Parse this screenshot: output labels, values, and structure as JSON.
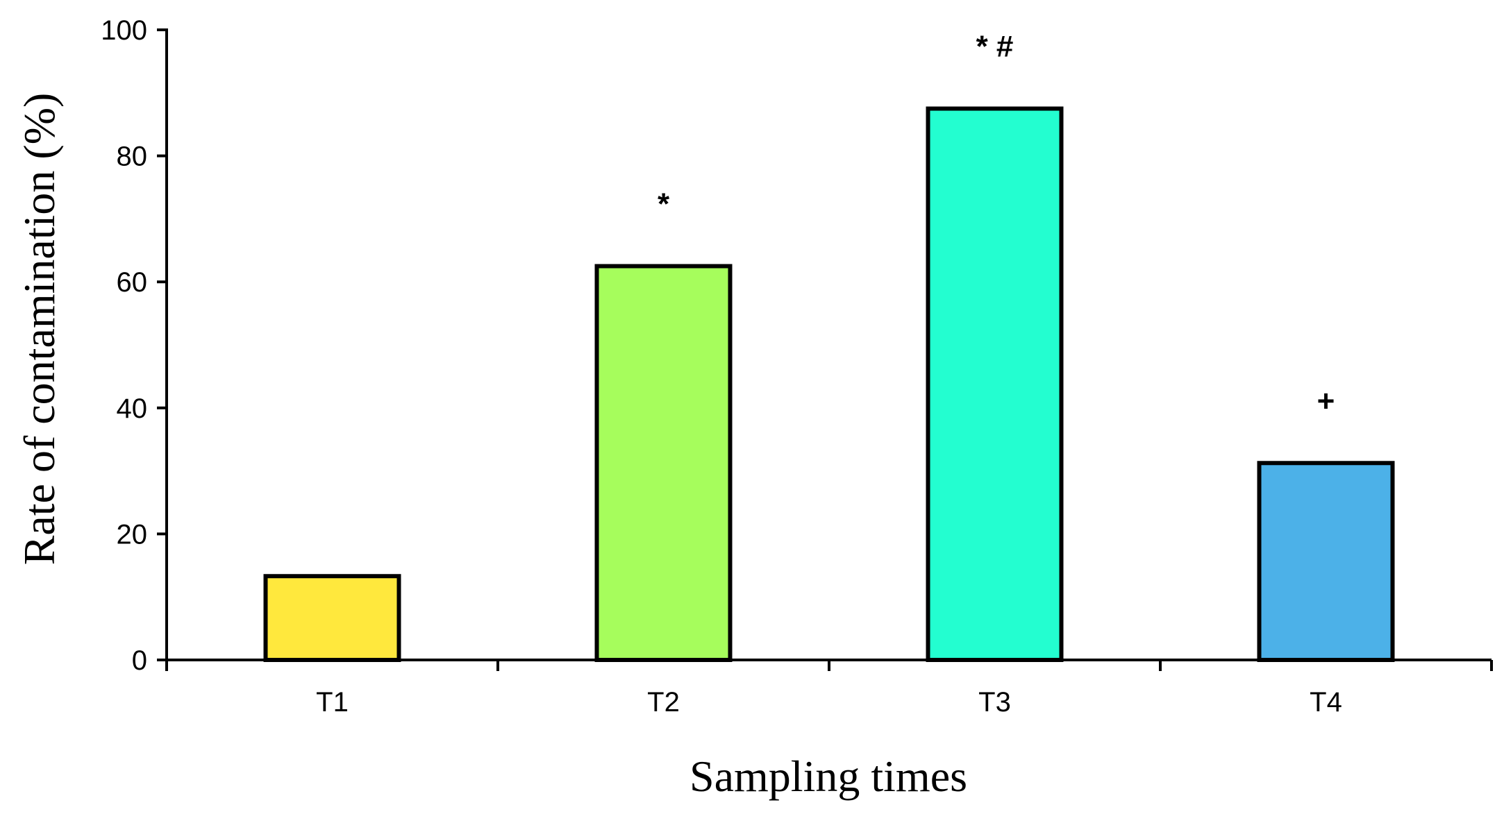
{
  "chart_data": {
    "type": "bar",
    "title": "",
    "xlabel": "Sampling times",
    "ylabel": "Rate of contamination (%)",
    "ylim": [
      0,
      100
    ],
    "yticks": [
      0,
      20,
      40,
      60,
      80,
      100
    ],
    "ytick_labels": [
      "0",
      "20",
      "40",
      "60",
      "80",
      "100"
    ],
    "categories": [
      "T1",
      "T2",
      "T3",
      "T4"
    ],
    "values": [
      13.3,
      62.5,
      87.5,
      31.25
    ],
    "colors": [
      "#FFE83D",
      "#A6FD5C",
      "#23FED0",
      "#4CB1E8"
    ],
    "annotations": [
      "",
      "*",
      "* #",
      "+"
    ],
    "grid": false,
    "legend": "none"
  }
}
